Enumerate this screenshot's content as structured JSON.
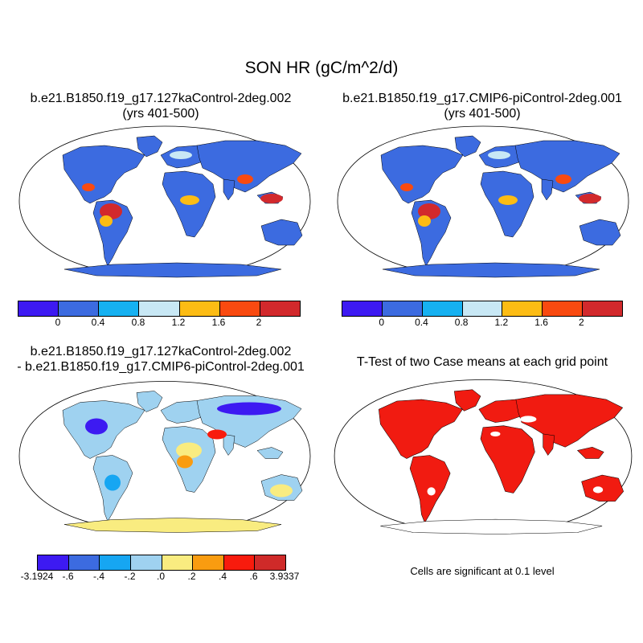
{
  "main_title": "SON HR (gC/m^2/d)",
  "panels": [
    {
      "title_line1": "b.e21.B1850.f19_g17.127kaControl-2deg.002",
      "title_line2": "(yrs 401-500)"
    },
    {
      "title_line1": "b.e21.B1850.f19_g17.CMIP6-piControl-2deg.001",
      "title_line2": "(yrs 401-500)"
    },
    {
      "title_line1": "b.e21.B1850.f19_g17.127kaControl-2deg.002",
      "title_line2": "- b.e21.B1850.f19_g17.CMIP6-piControl-2deg.001"
    },
    {
      "title_line1": "T-Test of two Case means at each grid point",
      "title_line2": ""
    }
  ],
  "colorbar_top": {
    "colors": [
      "#3d1af2",
      "#3c6be0",
      "#16b1f1",
      "#c8e8f5",
      "#fcbc14",
      "#f94a10",
      "#d2292c"
    ],
    "labels": [
      "0",
      "0.4",
      "0.8",
      "1.2",
      "1.6",
      "2"
    ]
  },
  "colorbar_diff": {
    "colors": [
      "#3d1af2",
      "#3c6be0",
      "#16a6f2",
      "#9fd2f0",
      "#f9ec80",
      "#f99c10",
      "#f81b0d",
      "#cf2a29"
    ],
    "labels": [
      "-3.1924",
      "-.6",
      "-.4",
      "-.2",
      ".0",
      ".2",
      ".4",
      ".6",
      "3.9337"
    ]
  },
  "significance_note": "Cells are significant at 0.1 level",
  "map_colors": {
    "land_base": "#3c6be0",
    "ocean": "#ffffff",
    "diff_positive": "#f9ec80",
    "significant": "#f11b11",
    "outline": "#000000"
  }
}
